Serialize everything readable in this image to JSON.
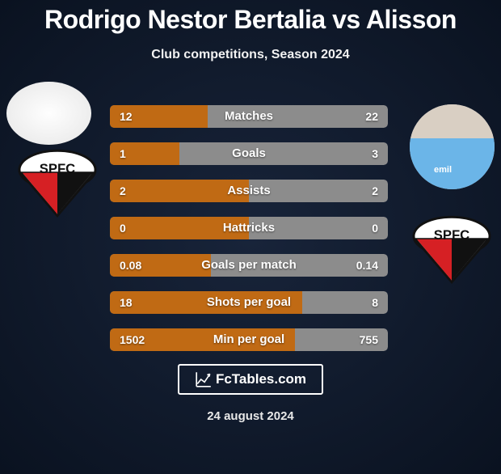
{
  "title": "Rodrigo Nestor Bertalia vs Alisson",
  "subtitle": "Club competitions, Season 2024",
  "brand": "FcTables.com",
  "date": "24 august 2024",
  "colors": {
    "bar_bg": "#8c8c8c",
    "bar_accent": "#c06a14",
    "bg_inner": "#18243a",
    "bg_outer": "#0a1220",
    "text": "#ffffff"
  },
  "avatar2_label": "emil",
  "bars": [
    {
      "label": "Matches",
      "left_val": "12",
      "right_val": "22",
      "left_pct": 35.3,
      "right_pct": 64.7
    },
    {
      "label": "Goals",
      "left_val": "1",
      "right_val": "3",
      "left_pct": 25.0,
      "right_pct": 75.0
    },
    {
      "label": "Assists",
      "left_val": "2",
      "right_val": "2",
      "left_pct": 50.0,
      "right_pct": 50.0
    },
    {
      "label": "Hattricks",
      "left_val": "0",
      "right_val": "0",
      "left_pct": 50.0,
      "right_pct": 50.0
    },
    {
      "label": "Goals per match",
      "left_val": "0.08",
      "right_val": "0.14",
      "left_pct": 36.4,
      "right_pct": 63.6
    },
    {
      "label": "Shots per goal",
      "left_val": "18",
      "right_val": "8",
      "left_pct": 69.2,
      "right_pct": 30.8
    },
    {
      "label": "Min per goal",
      "left_val": "1502",
      "right_val": "755",
      "left_pct": 66.5,
      "right_pct": 33.5
    }
  ]
}
